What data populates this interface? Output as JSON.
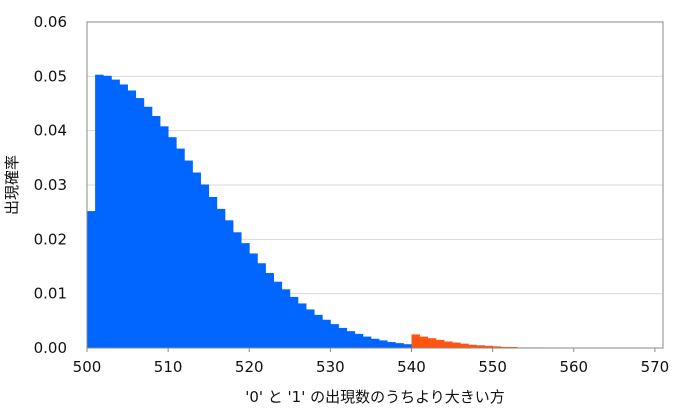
{
  "chart_data": {
    "type": "bar",
    "title": "",
    "xlabel": "'0' と '1' の出現数のうちより大きい方",
    "ylabel": "出現確率",
    "xlim": [
      500,
      571
    ],
    "ylim": [
      0,
      0.06
    ],
    "xticks": [
      500,
      510,
      520,
      530,
      540,
      550,
      560,
      570
    ],
    "yticks": [
      0.0,
      0.01,
      0.02,
      0.03,
      0.04,
      0.05,
      0.06
    ],
    "ytick_labels": [
      "0.00",
      "0.01",
      "0.02",
      "0.03",
      "0.04",
      "0.05",
      "0.06"
    ],
    "grid": "horizontal",
    "legend": "none",
    "colors": {
      "main": "#0066ff",
      "highlight": "#ff5511",
      "grid": "#d9d9d9"
    },
    "highlight_from": 540,
    "x": [
      500,
      501,
      502,
      503,
      504,
      505,
      506,
      507,
      508,
      509,
      510,
      511,
      512,
      513,
      514,
      515,
      516,
      517,
      518,
      519,
      520,
      521,
      522,
      523,
      524,
      525,
      526,
      527,
      528,
      529,
      530,
      531,
      532,
      533,
      534,
      535,
      536,
      537,
      538,
      539,
      540,
      541,
      542,
      543,
      544,
      545,
      546,
      547,
      548,
      549,
      550,
      551,
      552,
      553,
      554,
      555,
      556,
      557,
      558,
      559,
      560,
      561,
      562,
      563,
      564,
      565,
      566,
      567,
      568,
      569,
      570
    ],
    "values": [
      0.0252,
      0.0503,
      0.0501,
      0.0494,
      0.0485,
      0.0474,
      0.046,
      0.0444,
      0.0427,
      0.0408,
      0.0388,
      0.0367,
      0.0345,
      0.0323,
      0.0301,
      0.0278,
      0.0256,
      0.0235,
      0.0213,
      0.0193,
      0.0174,
      0.0156,
      0.0138,
      0.0122,
      0.0108,
      0.0094,
      0.0082,
      0.0071,
      0.0061,
      0.0052,
      0.0044,
      0.0037,
      0.0031,
      0.0026,
      0.0021,
      0.0017,
      0.0014,
      0.0011,
      0.0009,
      0.0007,
      0.0025,
      0.0021,
      0.0018,
      0.0015,
      0.0012,
      0.001,
      0.0008,
      0.0006,
      0.0005,
      0.0004,
      0.0003,
      0.0002,
      0.0002,
      0.0001,
      0.0001,
      0.0001,
      0.0001,
      0.0,
      0.0,
      0.0,
      0.0,
      0.0,
      0.0,
      0.0,
      0.0,
      0.0,
      0.0,
      0.0,
      0.0,
      0.0,
      0.0
    ]
  }
}
